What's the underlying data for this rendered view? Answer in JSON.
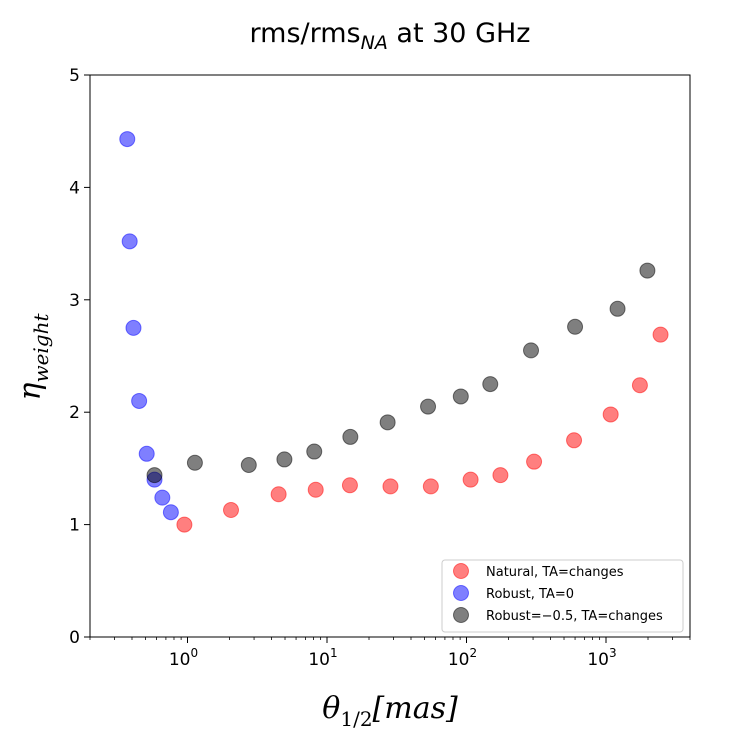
{
  "chart_data": {
    "type": "scatter",
    "title": "rms/rms",
    "title_subscript": "NA",
    "title_suffix": " at 30 GHz",
    "xlabel": "θ",
    "xlabel_subscript": "1/2",
    "xlabel_suffix": "[mas]",
    "ylabel": "η",
    "ylabel_subscript": "weight",
    "xscale": "log",
    "xlim": [
      0.2,
      4000
    ],
    "ylim": [
      0,
      5
    ],
    "x_ticks": [
      {
        "base": "10",
        "exp": "0",
        "value": 1
      },
      {
        "base": "10",
        "exp": "1",
        "value": 10
      },
      {
        "base": "10",
        "exp": "2",
        "value": 100
      },
      {
        "base": "10",
        "exp": "3",
        "value": 1000
      }
    ],
    "y_ticks": [
      {
        "label": "0",
        "value": 0
      },
      {
        "label": "1",
        "value": 1
      },
      {
        "label": "2",
        "value": 2
      },
      {
        "label": "3",
        "value": 3
      },
      {
        "label": "4",
        "value": 4
      },
      {
        "label": "5",
        "value": 5
      }
    ],
    "legend_position": "lower-right",
    "series": [
      {
        "name": "Natural, TA=changes",
        "color": "#ff0000",
        "x": [
          0.95,
          2.05,
          4.5,
          8.3,
          14.6,
          28.5,
          55.5,
          107,
          175,
          305,
          590,
          1080,
          1750,
          2460
        ],
        "y": [
          1.0,
          1.13,
          1.27,
          1.31,
          1.35,
          1.34,
          1.34,
          1.4,
          1.44,
          1.56,
          1.75,
          1.98,
          2.24,
          2.69
        ]
      },
      {
        "name": "Robust, TA=0",
        "color": "#0000ff",
        "x": [
          0.37,
          0.385,
          0.41,
          0.45,
          0.51,
          0.58,
          0.66,
          0.76
        ],
        "y": [
          4.43,
          3.52,
          2.75,
          2.1,
          1.63,
          1.4,
          1.24,
          1.11
        ]
      },
      {
        "name": "Robust=−0.5, TA=changes",
        "color": "#000000",
        "x": [
          0.58,
          1.13,
          2.75,
          4.95,
          8.1,
          14.7,
          27.2,
          53,
          91,
          148,
          290,
          600,
          1210,
          1980
        ],
        "y": [
          1.44,
          1.55,
          1.53,
          1.58,
          1.65,
          1.78,
          1.91,
          2.05,
          2.14,
          2.25,
          2.55,
          2.76,
          2.92,
          3.26
        ]
      }
    ]
  }
}
